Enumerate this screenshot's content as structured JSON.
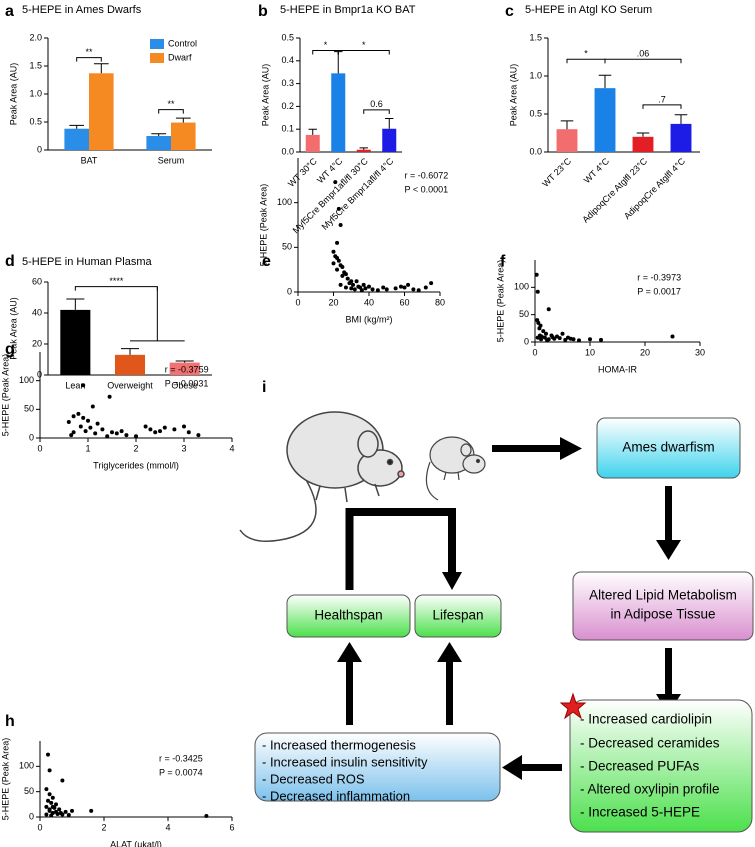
{
  "chart_data": [
    {
      "type": "bar",
      "panel": "a",
      "title": "5-HEPE in Ames Dwarfs",
      "ylabel": "Peak Area (AU)",
      "categories": [
        "BAT",
        "Serum"
      ],
      "series": [
        {
          "name": "Control",
          "color": "#2a8de8",
          "values": [
            0.38,
            0.25
          ],
          "errors": [
            0.06,
            0.04
          ]
        },
        {
          "name": "Dwarf",
          "color": "#f58a22",
          "values": [
            1.37,
            0.49
          ],
          "errors": [
            0.17,
            0.08
          ]
        }
      ],
      "ylim": [
        0,
        2
      ],
      "yticks": [
        0,
        0.5,
        {
          "value": 1,
          "label": "1.0"
        },
        1.5,
        {
          "value": 2,
          "label": "2.0"
        }
      ],
      "legend": "upper right",
      "annotations": [
        "**",
        "**"
      ]
    },
    {
      "type": "bar",
      "panel": "b",
      "title": "5-HEPE in Bmpr1a KO BAT",
      "ylabel": "Peak Area (AU)",
      "categories": [
        "WT 30°C",
        "WT 4°C",
        "Myf5Cre Bmpr1afl/fl 30°C",
        "Myf5Cre Bmpr1afl/fl 4°C"
      ],
      "values": [
        0.075,
        0.345,
        0.01,
        0.102
      ],
      "errors": [
        0.025,
        0.095,
        0.008,
        0.045
      ],
      "colors": [
        "#f26d6d",
        "#1a82e6",
        "#e31e25",
        "#1c1ce6"
      ],
      "ylim": [
        0,
        0.5
      ],
      "yticks": [
        {
          "value": 0,
          "label": "0.0"
        },
        0.1,
        0.2,
        0.3,
        0.4,
        0.5
      ],
      "annotations": [
        "*",
        "*",
        "0.6"
      ]
    },
    {
      "type": "bar",
      "panel": "c",
      "title": "5-HEPE in Atgl KO Serum",
      "ylabel": "Peak Area (AU)",
      "categories": [
        "WT 23°C",
        "WT 4°C",
        "AdipoqCre Atglfl 23°C",
        "AdipoqCre Atglfl 4°C"
      ],
      "values": [
        0.3,
        0.84,
        0.2,
        0.37
      ],
      "errors": [
        0.11,
        0.17,
        0.05,
        0.12
      ],
      "colors": [
        "#f26d6d",
        "#1a82e6",
        "#e31e25",
        "#1c1ce6"
      ],
      "ylim": [
        0,
        1.5
      ],
      "yticks": [
        {
          "value": 0,
          "label": "0.0"
        },
        0.5,
        {
          "value": 1,
          "label": "1.0"
        },
        1.5
      ],
      "annotations": [
        "*",
        ".06",
        ".7"
      ]
    },
    {
      "type": "bar",
      "panel": "d",
      "title": "5-HEPE in Human Plasma",
      "ylabel": "Peak Area (AU)",
      "categories": [
        "Lean",
        "Overweight",
        "Obese"
      ],
      "values": [
        42,
        13,
        8
      ],
      "errors": [
        7,
        4,
        1
      ],
      "colors": [
        "#000000",
        "#e0561b",
        "#f07272"
      ],
      "ylim": [
        0,
        60
      ],
      "yticks": [
        0,
        20,
        40,
        60
      ],
      "annotations": [
        "****"
      ]
    },
    {
      "type": "scatter",
      "panel": "e",
      "xlabel": "BMI (kg/m²)",
      "ylabel": "5-HEPE (Peak Area)",
      "color": "#000000",
      "x": [
        21,
        23,
        24,
        22,
        20,
        21,
        22,
        23,
        20,
        24,
        25,
        22,
        26,
        27,
        25,
        28,
        30,
        29,
        31,
        33,
        34,
        35,
        37,
        38,
        40,
        42,
        45,
        48,
        50,
        55,
        58,
        60,
        62,
        65,
        68,
        72,
        75,
        32,
        36,
        27,
        24,
        30
      ],
      "values": [
        123,
        93,
        75,
        55,
        45,
        40,
        38,
        35,
        32,
        30,
        28,
        25,
        22,
        20,
        18,
        15,
        12,
        10,
        8,
        12,
        6,
        5,
        8,
        4,
        6,
        3,
        2,
        5,
        3,
        4,
        6,
        5,
        8,
        3,
        2,
        5,
        10,
        3,
        2,
        5,
        8,
        4
      ],
      "xlim": [
        0,
        80
      ],
      "xticks": [
        0,
        20,
        40,
        60,
        80
      ],
      "ylim": [
        0,
        150
      ],
      "yticks": [
        0,
        50,
        100
      ],
      "annotations": [
        "r = -0.6072",
        "P < 0.0001"
      ]
    },
    {
      "type": "scatter",
      "panel": "f",
      "xlabel": "HOMA-IR",
      "ylabel": "5-HEPE (Peak Area)",
      "color": "#000000",
      "x": [
        0.3,
        0.5,
        2.5,
        0.4,
        0.6,
        1,
        0.8,
        1.5,
        2,
        3,
        1.2,
        0.5,
        4,
        5,
        6,
        2.5,
        3.5,
        7,
        8,
        10,
        12,
        25,
        1.8,
        0.9,
        4.5,
        5.5,
        2.2,
        1.1,
        3.2,
        6.5
      ],
      "values": [
        123,
        92,
        60,
        40,
        35,
        30,
        25,
        20,
        15,
        12,
        10,
        8,
        10,
        15,
        8,
        5,
        6,
        5,
        3,
        5,
        4,
        10,
        8,
        12,
        7,
        4,
        3,
        5,
        9,
        6
      ],
      "xlim": [
        0,
        30
      ],
      "xticks": [
        0,
        10,
        20,
        30
      ],
      "ylim": [
        0,
        150
      ],
      "yticks": [
        0,
        50,
        100
      ],
      "annotations": [
        "r = -0.3973",
        "P = 0.0017"
      ]
    },
    {
      "type": "scatter",
      "panel": "g",
      "xlabel": "Triglycerides (mmol/l)",
      "ylabel": "5-HEPE (Peak Area)",
      "color": "#000000",
      "x": [
        0.75,
        0.9,
        1.45,
        1.1,
        0.8,
        0.7,
        0.9,
        1.0,
        0.6,
        1.2,
        0.85,
        1.05,
        1.3,
        0.95,
        0.7,
        1.5,
        1.6,
        1.8,
        2.0,
        2.2,
        2.3,
        2.5,
        2.6,
        2.8,
        3.0,
        3.1,
        3.3,
        1.4,
        0.65,
        1.15,
        2.4,
        1.7
      ],
      "values": [
        123,
        92,
        72,
        55,
        42,
        38,
        35,
        30,
        28,
        25,
        20,
        18,
        15,
        12,
        10,
        10,
        8,
        5,
        3,
        20,
        15,
        12,
        18,
        15,
        20,
        10,
        5,
        3,
        5,
        8,
        10,
        12
      ],
      "xlim": [
        0,
        4
      ],
      "xticks": [
        0,
        1,
        2,
        3,
        4
      ],
      "ylim": [
        0,
        150
      ],
      "yticks": [
        0,
        50,
        100
      ],
      "annotations": [
        "r = -0.3759",
        "P = 0.0031"
      ]
    },
    {
      "type": "scatter",
      "panel": "h",
      "xlabel": "ALAT (µkat/l)",
      "ylabel": "5-HEPE (Peak Area)",
      "color": "#000000",
      "x": [
        0.25,
        0.3,
        0.7,
        0.2,
        0.3,
        0.4,
        0.25,
        0.35,
        0.5,
        0.2,
        0.45,
        0.6,
        0.3,
        0.8,
        1.0,
        1.6,
        0.4,
        0.55,
        0.7,
        0.9,
        0.2,
        0.35,
        5.2,
        0.5,
        0.65,
        0.3,
        0.4
      ],
      "values": [
        123,
        92,
        72,
        55,
        45,
        38,
        32,
        28,
        25,
        20,
        18,
        15,
        12,
        10,
        12,
        12,
        8,
        6,
        5,
        4,
        5,
        3,
        2,
        10,
        8,
        15,
        20
      ],
      "xlim": [
        0,
        6
      ],
      "xticks": [
        0,
        2,
        4,
        6
      ],
      "ylim": [
        0,
        150
      ],
      "yticks": [
        0,
        50,
        100
      ],
      "annotations": [
        "r = -0.3425",
        "P = 0.0074"
      ]
    }
  ],
  "diagram": {
    "panel": "i",
    "nodes": [
      {
        "label": "Ames dwarfism"
      },
      {
        "lines": [
          "Altered Lipid Metabolism",
          "in Adipose Tissue"
        ]
      },
      {
        "lines": [
          "- Increased cardiolipin",
          "- Decreased ceramides",
          "- Decreased PUFAs",
          "- Altered oxylipin profile",
          "- Increased 5-HEPE"
        ]
      },
      {
        "lines": [
          "- Increased thermogenesis",
          "- Increased insulin sensitivity",
          "- Decreased ROS",
          "- Decreased inflammation"
        ]
      },
      {
        "label": "Healthspan"
      },
      {
        "label": "Lifespan"
      }
    ]
  }
}
